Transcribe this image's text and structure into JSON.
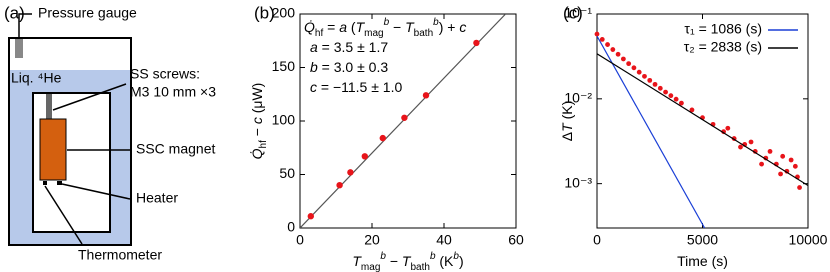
{
  "panel_labels": [
    "(a)",
    "(b)",
    "(c)"
  ],
  "diagram": {
    "pressure_gauge": "Pressure gauge",
    "liquid": "Liq. ⁴He",
    "screws_1": "SS screws:",
    "screws_2": "M3 10 mm ×3",
    "magnet": "SSC magnet",
    "heater": "Heater",
    "thermometer": "Thermometer"
  },
  "chart_data": [
    {
      "type": "scatter",
      "x_label": [
        {
          "text": "T",
          "style": "italic"
        },
        {
          "text": "mag",
          "style": "sub"
        },
        {
          "text": "b",
          "style": "sup-italic"
        },
        {
          "text": " − ",
          "style": "plain"
        },
        {
          "text": "T",
          "style": "italic"
        },
        {
          "text": "bath",
          "style": "sub"
        },
        {
          "text": "b",
          "style": "sup-italic"
        },
        {
          "text": " (K",
          "style": "plain"
        },
        {
          "text": "b",
          "style": "sup-italic"
        },
        {
          "text": ")",
          "style": "plain"
        }
      ],
      "y_label": [
        {
          "text": "Q̇",
          "style": "italic"
        },
        {
          "text": "hf",
          "style": "sub"
        },
        {
          "text": " − ",
          "style": "plain"
        },
        {
          "text": "c",
          "style": "italic"
        },
        {
          "text": " (μW)",
          "style": "plain"
        }
      ],
      "annotations": [
        [
          {
            "text": "Q̇",
            "style": "italic"
          },
          {
            "text": "hf",
            "style": "sub"
          },
          {
            "text": " = ",
            "style": "plain"
          },
          {
            "text": "a",
            "style": "italic"
          },
          {
            "text": " (",
            "style": "plain"
          },
          {
            "text": "T",
            "style": "italic"
          },
          {
            "text": "mag",
            "style": "sub"
          },
          {
            "text": "b",
            "style": "sup-italic"
          },
          {
            "text": " − ",
            "style": "plain"
          },
          {
            "text": "T",
            "style": "italic"
          },
          {
            "text": "bath",
            "style": "sub"
          },
          {
            "text": "b",
            "style": "sup-italic"
          },
          {
            "text": ") + ",
            "style": "plain"
          },
          {
            "text": "c",
            "style": "italic"
          }
        ],
        [
          {
            "text": "a",
            "style": "italic"
          },
          {
            "text": " = 3.5 ± 1.7",
            "style": "plain"
          }
        ],
        [
          {
            "text": "b",
            "style": "italic"
          },
          {
            "text": " = 3.0 ± 0.3",
            "style": "plain"
          }
        ],
        [
          {
            "text": "c",
            "style": "italic"
          },
          {
            "text": " = −11.5 ± 1.0",
            "style": "plain"
          }
        ]
      ],
      "x": [
        3,
        11,
        14,
        18,
        23,
        29,
        35,
        49
      ],
      "values": [
        11,
        40,
        52,
        67,
        84,
        103,
        124,
        173
      ],
      "color": "#e8141a",
      "fit_line": {
        "x": [
          0,
          57.1
        ],
        "values": [
          0,
          200
        ],
        "color": "#555555"
      },
      "xlim": [
        0,
        60
      ],
      "xticks": [
        0,
        20,
        40,
        60
      ],
      "ylim": [
        0,
        200
      ],
      "yticks": [
        0,
        50,
        100,
        150,
        200
      ]
    },
    {
      "type": "scatter",
      "log_y": true,
      "legend": "top-right",
      "x_label": [
        {
          "text": "Time (s)",
          "style": "plain"
        }
      ],
      "y_label": [
        {
          "text": "Δ",
          "style": "plain"
        },
        {
          "text": "T",
          "style": "italic"
        },
        {
          "text": " (K)",
          "style": "plain"
        }
      ],
      "series": [
        {
          "color": "#e8141a",
          "mode": "markers",
          "x": [
            0,
            250,
            500,
            750,
            1000,
            1250,
            1500,
            1750,
            2000,
            2250,
            2500,
            2750,
            3000,
            3250,
            3500,
            3750,
            4000,
            4500,
            5000,
            5500,
            6000,
            6500,
            7000,
            7500,
            8000,
            8500,
            9000,
            9500,
            6200,
            6800,
            7300,
            7800,
            8200,
            8700,
            9200,
            9600,
            8800,
            9400
          ],
          "values": [
            0.058,
            0.0502,
            0.0436,
            0.0381,
            0.0335,
            0.0295,
            0.026,
            0.0232,
            0.0206,
            0.0184,
            0.0165,
            0.0148,
            0.0133,
            0.012,
            0.0109,
            0.0099,
            0.0089,
            0.0074,
            0.006,
            0.005,
            0.0041,
            0.0034,
            0.0029,
            0.0024,
            0.002,
            0.0017,
            0.0014,
            0.0012,
            0.0045,
            0.0027,
            0.0031,
            0.0017,
            0.0024,
            0.0013,
            0.0019,
            0.0009,
            0.0021,
            0.0016
          ]
        },
        {
          "name": "τ₁ = 1086 (s)",
          "color": "#1a3fd6",
          "mode": "line",
          "x": [
            0,
            5100
          ],
          "values": [
            0.055,
            0.0003
          ]
        },
        {
          "name": "τ₂ = 2838 (s)",
          "color": "#000000",
          "mode": "line",
          "x": [
            0,
            10000
          ],
          "values": [
            0.034,
            0.00095
          ]
        }
      ],
      "xlim": [
        0,
        10000
      ],
      "xticks": [
        0,
        5000,
        10000
      ],
      "ylim": [
        0.0003,
        0.1
      ],
      "yticks": [
        {
          "value": 0.001,
          "label": "10⁻³"
        },
        {
          "value": 0.01,
          "label": "10⁻²"
        },
        {
          "value": 0.1,
          "label": "10⁻¹"
        }
      ]
    }
  ]
}
